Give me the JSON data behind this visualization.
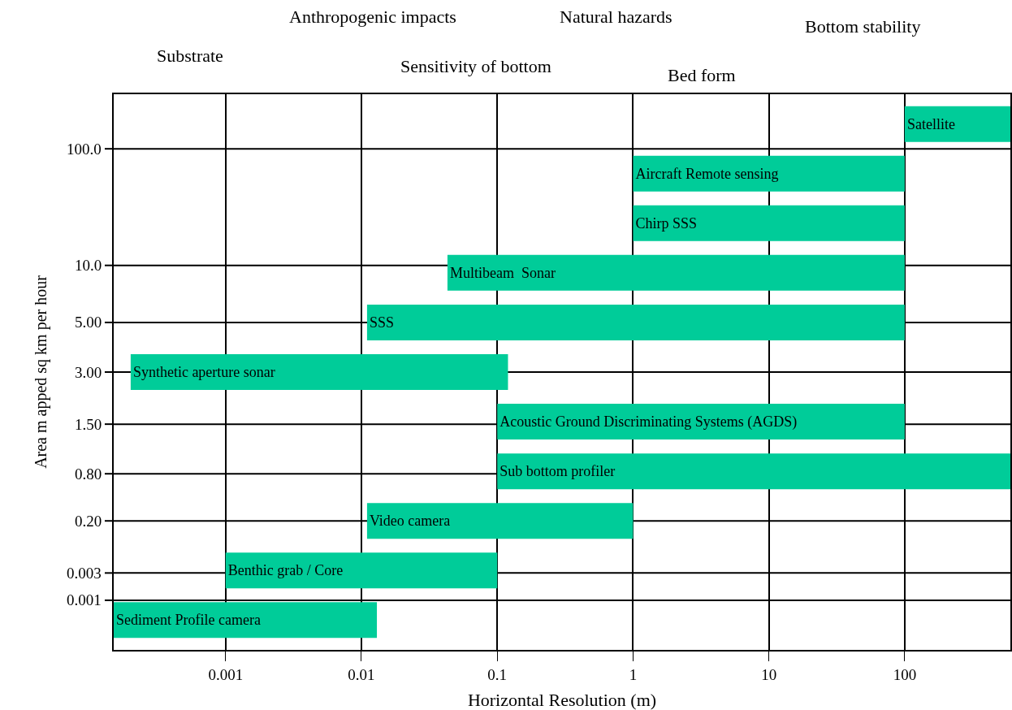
{
  "chart_data": {
    "type": "bar",
    "orientation": "horizontal",
    "log": "x",
    "xlabel": "Horizontal Resolution (m)",
    "ylabel": "Area m apped sq km per hour",
    "categories": [
      "Satellite",
      "Aircraft Remote sensing",
      "Chirp SSS",
      "Multibeam  Sonar",
      "SSS",
      "Synthetic aperture sonar",
      "Acoustic Ground Discriminating Systems (AGDS)",
      "Sub bottom profiler",
      "Video camera",
      "Benthic grab / Core",
      "Sediment Profile camera"
    ],
    "base": [
      100,
      1,
      1,
      0.043,
      0.011,
      0.0002,
      0.1,
      0.1,
      0.011,
      0.001,
      0.00015
    ],
    "values": [
      500,
      99,
      99,
      99.957,
      99.989,
      0.1198,
      99.9,
      599.9,
      0.989,
      0.099,
      0.01285
    ],
    "color": "#00cc99",
    "xlim": [
      0.00015,
      600
    ],
    "xticks": [
      0.001,
      0.01,
      0.1,
      1,
      10,
      100
    ],
    "tick_labels": "x",
    "grid": true,
    "annotations": [
      "Substrate",
      "Anthropogenic impacts",
      "Sensitivity of bottom",
      "Natural hazards",
      "Bed form",
      "Bottom stability",
      "100.0",
      "10.0",
      "5.00",
      "3.00",
      "1.50",
      "0.80",
      "0.20",
      "0.003",
      "0.001"
    ]
  }
}
